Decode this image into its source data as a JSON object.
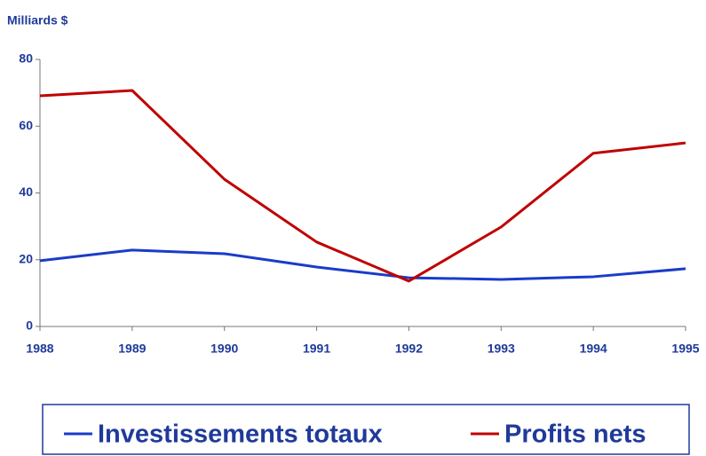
{
  "chart_data": {
    "type": "line",
    "y_axis_label": "Milliards $",
    "x": [
      1988,
      1989,
      1990,
      1991,
      1992,
      1993,
      1994,
      1995
    ],
    "xlim": [
      1988,
      1995
    ],
    "xticks": [
      1988,
      1989,
      1990,
      1991,
      1992,
      1993,
      1994,
      1995
    ],
    "ylim": [
      0,
      80
    ],
    "yticks": [
      0,
      20,
      40,
      60,
      80
    ],
    "grid": false,
    "legend": "bottom",
    "series": [
      {
        "name": "Investissements totaux",
        "color": "#1a3cc8",
        "values": [
          19.7,
          22.9,
          21.8,
          17.8,
          14.6,
          14.1,
          14.9,
          17.3
        ]
      },
      {
        "name": "Profits nets",
        "color": "#c00000",
        "values": [
          69.1,
          70.7,
          44.1,
          25.3,
          13.6,
          29.8,
          51.9,
          55.0
        ]
      }
    ]
  }
}
